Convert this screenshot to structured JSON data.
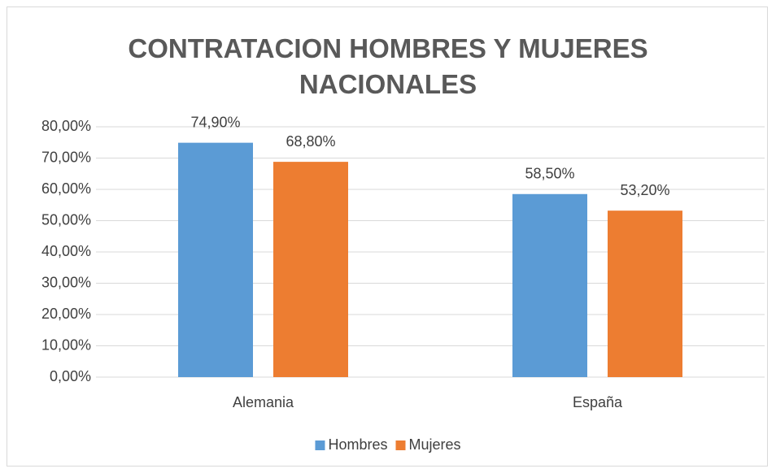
{
  "chart_data": {
    "type": "bar",
    "title": "CONTRATACION HOMBRES Y MUJERES NACIONALES",
    "categories": [
      "Alemania",
      "España"
    ],
    "series": [
      {
        "name": "Hombres",
        "color": "#5b9bd5",
        "values": [
          74.9,
          58.5
        ],
        "value_labels": [
          "74,90%",
          "58,50%"
        ]
      },
      {
        "name": "Mujeres",
        "color": "#ed7d31",
        "values": [
          68.8,
          53.2
        ],
        "value_labels": [
          "68,80%",
          "53,20%"
        ]
      }
    ],
    "ylim": [
      0,
      80
    ],
    "yticks": [
      {
        "value": 0,
        "label": "0,00%"
      },
      {
        "value": 10,
        "label": "10,00%"
      },
      {
        "value": 20,
        "label": "20,00%"
      },
      {
        "value": 30,
        "label": "30,00%"
      },
      {
        "value": 40,
        "label": "40,00%"
      },
      {
        "value": 50,
        "label": "50,00%"
      },
      {
        "value": 60,
        "label": "60,00%"
      },
      {
        "value": 70,
        "label": "70,00%"
      },
      {
        "value": 80,
        "label": "80,00%"
      }
    ],
    "grid": true,
    "legend": "bottom"
  }
}
